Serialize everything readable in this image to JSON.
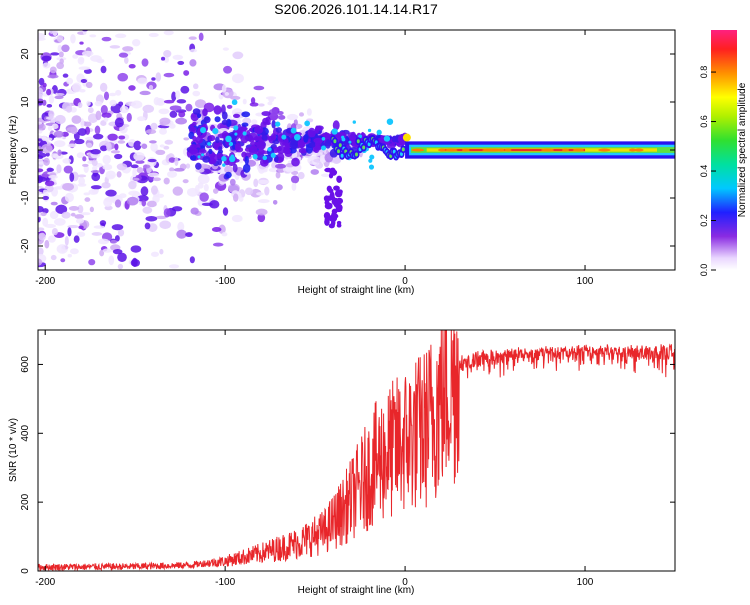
{
  "title": "S206.2026.101.14.14.R17",
  "chart_data": [
    {
      "type": "heatmap",
      "xlabel": "Height of straight line (km)",
      "ylabel": "Frequency (Hz)",
      "xlim": [
        -204,
        150
      ],
      "ylim": [
        -25,
        25
      ],
      "xticks": [
        -200,
        -100,
        0,
        100
      ],
      "yticks": [
        -20,
        -10,
        0,
        10,
        20
      ],
      "colorbar": {
        "label": "Normalized spectral amplitude",
        "range": [
          0,
          0.97
        ],
        "ticks": [
          0.0,
          0.2,
          0.4,
          0.6,
          0.8
        ]
      },
      "features": {
        "scatter_region_km": [
          -204,
          -50
        ],
        "converging_region_km": [
          -120,
          0
        ],
        "steady_tone_km": [
          0,
          150
        ],
        "steady_tone_frequency_hz": 0,
        "peak_amplitude_region_km": [
          20,
          100
        ]
      }
    },
    {
      "type": "line",
      "xlabel": "Height of straight line (km)",
      "ylabel": "SNR (10 * v/v)",
      "xlim": [
        -204,
        150
      ],
      "ylim": [
        0,
        700
      ],
      "xticks": [
        -200,
        -100,
        0,
        100
      ],
      "yticks": [
        0,
        200,
        400,
        600
      ],
      "color": "#e8262a",
      "trend": {
        "x": [
          -204,
          -150,
          -120,
          -100,
          -80,
          -60,
          -45,
          -35,
          -25,
          -15,
          -5,
          5,
          10,
          15,
          20,
          25,
          30,
          40,
          60,
          100,
          150
        ],
        "y": [
          12,
          14,
          18,
          30,
          55,
          85,
          120,
          180,
          260,
          340,
          380,
          420,
          430,
          470,
          540,
          590,
          615,
          630,
          640,
          650,
          650
        ]
      }
    }
  ]
}
